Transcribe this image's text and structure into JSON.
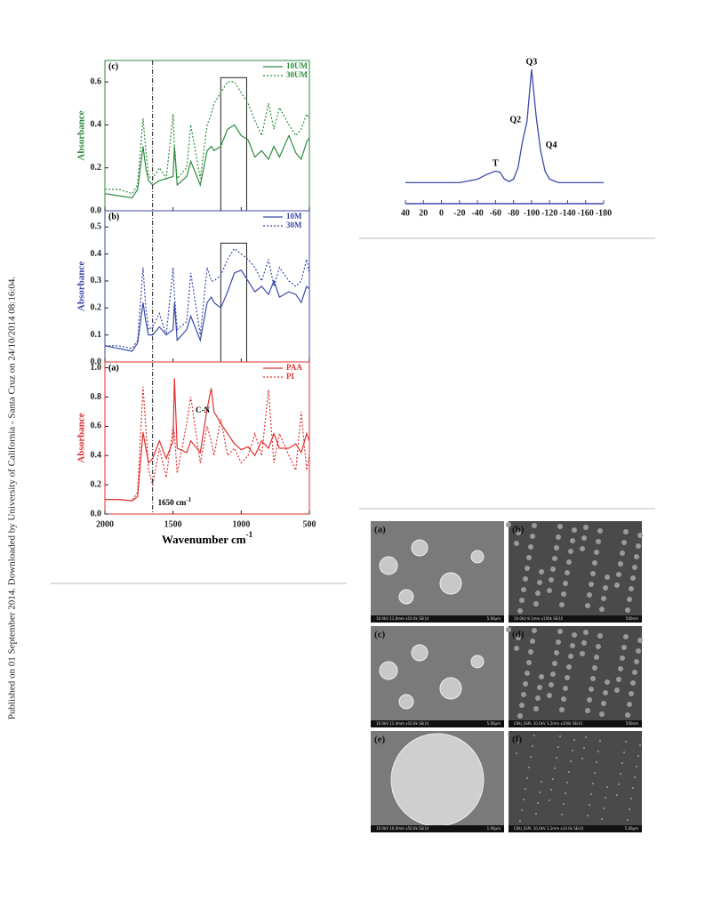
{
  "sidebar": "Published on 01 September 2014. Downloaded by University of California - Santa Cruz on 24/10/2014 08:16:04.",
  "figure_ftir": {
    "xlabel": "Wavenumber cm",
    "xlabel_sup": "-1",
    "xlim": [
      2000,
      500
    ],
    "xticks": [
      2000,
      1500,
      1000,
      500
    ],
    "x": [
      2000,
      1900,
      1800,
      1760,
      1720,
      1700,
      1680,
      1650,
      1600,
      1550,
      1500,
      1490,
      1470,
      1400,
      1370,
      1300,
      1250,
      1220,
      1200,
      1150,
      1100,
      1050,
      1000,
      950,
      900,
      850,
      800,
      760,
      720,
      650,
      600,
      560,
      520,
      500
    ],
    "marker": {
      "x": 1650,
      "label": "1650 cm",
      "sup": "-1"
    },
    "annotation": "C-N",
    "panels": [
      {
        "label": "(c)",
        "ylabel": "Absorbance",
        "color": "#2e8b3e",
        "ylim": [
          0,
          0.7
        ],
        "yticks": [
          {
            "value": 0,
            "label": "0.0"
          },
          0.2,
          0.4,
          0.6
        ],
        "box": {
          "x": [
            1150,
            960
          ],
          "y": [
            0,
            0.62
          ]
        },
        "series": [
          {
            "name": "10UM",
            "style": "solid",
            "values": [
              0.08,
              0.07,
              0.06,
              0.1,
              0.3,
              0.2,
              0.14,
              0.12,
              0.14,
              0.15,
              0.16,
              0.3,
              0.12,
              0.16,
              0.23,
              0.12,
              0.28,
              0.3,
              0.28,
              0.3,
              0.38,
              0.4,
              0.35,
              0.33,
              0.25,
              0.28,
              0.24,
              0.3,
              0.25,
              0.35,
              0.27,
              0.24,
              0.32,
              0.34
            ]
          },
          {
            "name": "30UM",
            "style": "dotted",
            "values": [
              0.1,
              0.1,
              0.08,
              0.12,
              0.43,
              0.28,
              0.16,
              0.15,
              0.2,
              0.15,
              0.45,
              0.3,
              0.15,
              0.2,
              0.4,
              0.15,
              0.4,
              0.45,
              0.5,
              0.55,
              0.6,
              0.6,
              0.55,
              0.5,
              0.42,
              0.35,
              0.5,
              0.38,
              0.48,
              0.4,
              0.35,
              0.38,
              0.45,
              0.43
            ]
          }
        ]
      },
      {
        "label": "(b)",
        "ylabel": "Absorbance",
        "color": "#3a4aa8",
        "ylim": [
          0,
          0.56
        ],
        "yticks": [
          {
            "value": 0,
            "label": "0.0"
          },
          0.1,
          0.2,
          0.3,
          0.4,
          0.5
        ],
        "box": {
          "x": [
            1150,
            960
          ],
          "y": [
            0,
            0.44
          ]
        },
        "series": [
          {
            "name": "10M",
            "style": "solid",
            "values": [
              0.06,
              0.05,
              0.04,
              0.07,
              0.22,
              0.15,
              0.1,
              0.1,
              0.13,
              0.1,
              0.12,
              0.22,
              0.08,
              0.12,
              0.17,
              0.08,
              0.22,
              0.24,
              0.22,
              0.2,
              0.26,
              0.33,
              0.34,
              0.3,
              0.26,
              0.28,
              0.25,
              0.3,
              0.24,
              0.26,
              0.25,
              0.22,
              0.28,
              0.27
            ]
          },
          {
            "name": "30M",
            "style": "dotted",
            "values": [
              0.06,
              0.06,
              0.05,
              0.08,
              0.35,
              0.2,
              0.12,
              0.13,
              0.18,
              0.1,
              0.35,
              0.25,
              0.12,
              0.15,
              0.33,
              0.1,
              0.35,
              0.3,
              0.3,
              0.32,
              0.38,
              0.42,
              0.4,
              0.38,
              0.35,
              0.3,
              0.38,
              0.28,
              0.35,
              0.3,
              0.28,
              0.3,
              0.38,
              0.33
            ]
          }
        ]
      },
      {
        "label": "(a)",
        "ylabel": "Absorbance",
        "color": "#e03030",
        "ylim": [
          0,
          1.04
        ],
        "yticks": [
          {
            "value": 0,
            "label": "0.0"
          },
          0.2,
          0.4,
          0.6,
          0.8,
          {
            "value": 1,
            "label": "1.0"
          }
        ],
        "series": [
          {
            "name": "PAA",
            "style": "solid",
            "values": [
              0.1,
              0.1,
              0.09,
              0.12,
              0.56,
              0.45,
              0.35,
              0.38,
              0.5,
              0.38,
              0.5,
              0.93,
              0.45,
              0.42,
              0.5,
              0.42,
              0.72,
              0.86,
              0.7,
              0.62,
              0.55,
              0.48,
              0.44,
              0.46,
              0.4,
              0.5,
              0.45,
              0.55,
              0.45,
              0.45,
              0.48,
              0.42,
              0.55,
              0.5
            ]
          },
          {
            "name": "PI",
            "style": "dotted",
            "values": [
              0.1,
              0.1,
              0.09,
              0.15,
              0.87,
              0.6,
              0.3,
              0.2,
              0.45,
              0.25,
              0.6,
              0.55,
              0.28,
              0.62,
              0.8,
              0.35,
              0.6,
              0.5,
              0.4,
              0.65,
              0.4,
              0.45,
              0.35,
              0.4,
              0.55,
              0.4,
              0.85,
              0.35,
              0.55,
              0.4,
              0.3,
              0.7,
              0.3,
              0.4
            ]
          }
        ]
      }
    ]
  },
  "figure_nmr": {
    "color": "#3a4aa8",
    "xlim": [
      40,
      -180
    ],
    "ylim": [
      0,
      1
    ],
    "xticks": [
      40,
      20,
      0,
      -20,
      -40,
      -60,
      -80,
      -100,
      -120,
      -140,
      -160,
      -180
    ],
    "x": [
      40,
      20,
      0,
      -20,
      -40,
      -50,
      -60,
      -65,
      -70,
      -75,
      -80,
      -85,
      -90,
      -95,
      -100,
      -105,
      -110,
      -115,
      -120,
      -130,
      -140,
      -160,
      -180
    ],
    "values": [
      0.02,
      0.02,
      0.02,
      0.02,
      0.05,
      0.09,
      0.12,
      0.11,
      0.05,
      0.03,
      0.05,
      0.15,
      0.38,
      0.55,
      1.0,
      0.6,
      0.3,
      0.12,
      0.05,
      0.02,
      0.02,
      0.02,
      0.02
    ],
    "peaks": [
      {
        "label": "T",
        "x": -60,
        "y": 0.12
      },
      {
        "label": "Q2",
        "x": -92,
        "y": 0.5
      },
      {
        "label": "Q3",
        "x": -100,
        "y": 1.0
      },
      {
        "label": "Q4",
        "x": -112,
        "y": 0.28
      }
    ]
  },
  "figure_sem": [
    {
      "label": "(a)",
      "caption": "10.0kV 11.6mm x10.0k SE(U)",
      "scale": "5.00µm"
    },
    {
      "label": "(b)",
      "caption": "10.0kV 8.1mm x100k SE(U)",
      "scale": "500nm"
    },
    {
      "label": "(c)",
      "caption": "10.0kV 11.4mm x10.0k SE(U)",
      "scale": "5.00µm"
    },
    {
      "label": "(d)",
      "caption": "CNU_SSPL 10.0kV 3.2mm x100k SE(U)",
      "scale": "500nm"
    },
    {
      "label": "(e)",
      "caption": "10.0kV 10.0mm x50.0k SE(U)",
      "scale": "1.00µm"
    },
    {
      "label": "(f)",
      "caption": "CNU_SSPL 10.0kV 3.2mm x10.0k SE(U)",
      "scale": "5.00µm"
    }
  ]
}
